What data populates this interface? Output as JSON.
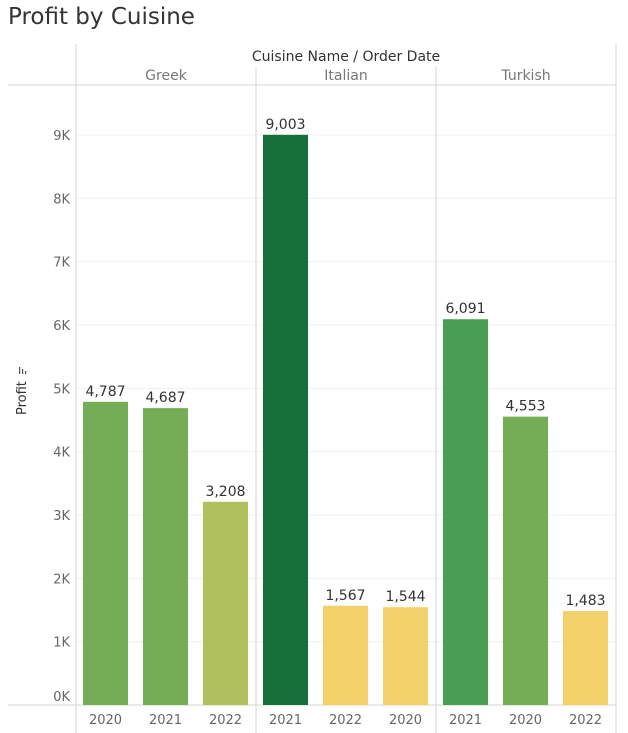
{
  "title": "Profit by Cuisine",
  "chart_data": {
    "type": "bar",
    "header": "Cuisine Name  /  Order Date",
    "ylabel": "Profit",
    "ylim": [
      0,
      10000
    ],
    "yticks": [
      0,
      1000,
      2000,
      3000,
      4000,
      5000,
      6000,
      7000,
      8000,
      9000
    ],
    "ytick_labels": [
      "0K",
      "1K",
      "2K",
      "3K",
      "4K",
      "5K",
      "6K",
      "7K",
      "8K",
      "9K"
    ],
    "groups": [
      {
        "name": "Greek",
        "bars": [
          {
            "year": "2020",
            "value": 4787,
            "label": "4,787",
            "color": "#75ac56"
          },
          {
            "year": "2021",
            "value": 4687,
            "label": "4,687",
            "color": "#75ac56"
          },
          {
            "year": "2022",
            "value": 3208,
            "label": "3,208",
            "color": "#b0c05c"
          }
        ]
      },
      {
        "name": "Italian",
        "bars": [
          {
            "year": "2021",
            "value": 9003,
            "label": "9,003",
            "color": "#166e38"
          },
          {
            "year": "2022",
            "value": 1567,
            "label": "1,567",
            "color": "#f2d06a"
          },
          {
            "year": "2020",
            "value": 1544,
            "label": "1,544",
            "color": "#f2d06a"
          }
        ]
      },
      {
        "name": "Turkish",
        "bars": [
          {
            "year": "2021",
            "value": 6091,
            "label": "6,091",
            "color": "#499e54"
          },
          {
            "year": "2020",
            "value": 4553,
            "label": "4,553",
            "color": "#75ac56"
          },
          {
            "year": "2022",
            "value": 1483,
            "label": "1,483",
            "color": "#f2d06a"
          }
        ]
      }
    ]
  }
}
